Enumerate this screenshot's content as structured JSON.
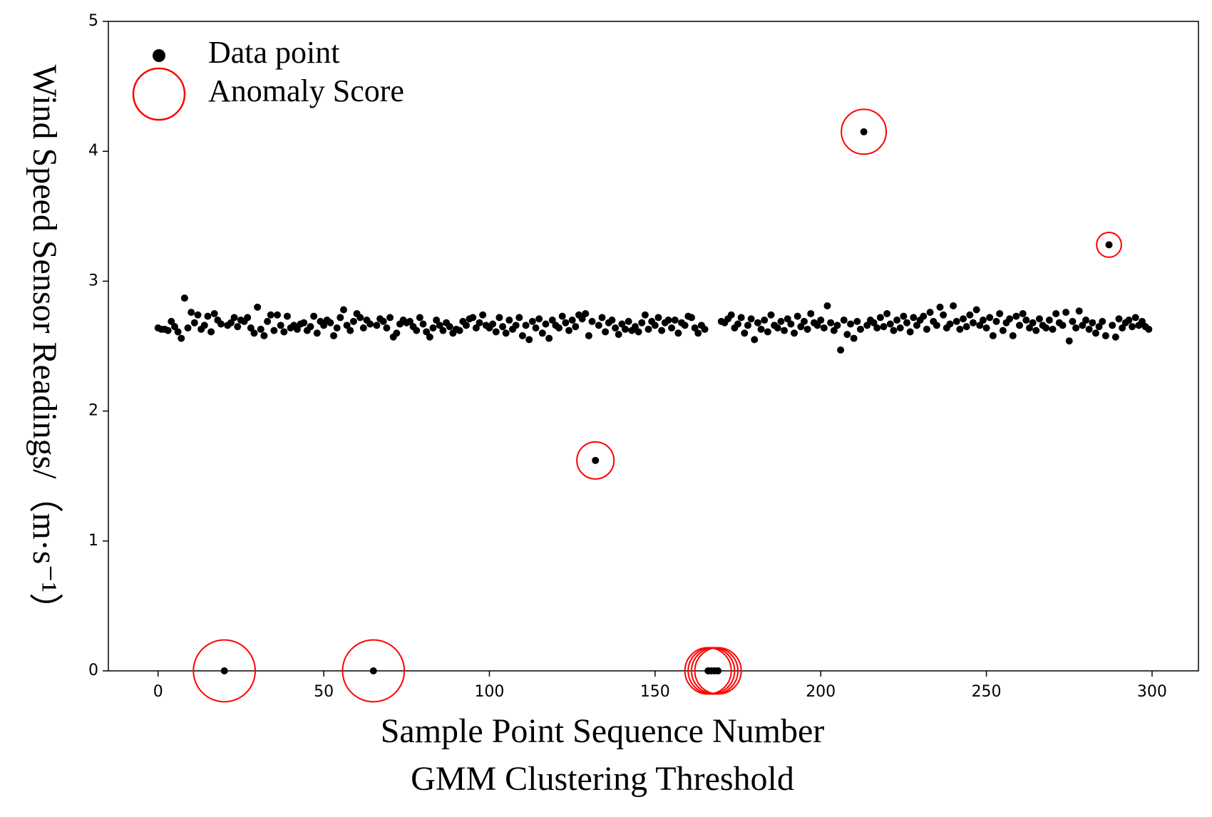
{
  "chart_data": {
    "type": "scatter",
    "xlabel": [
      "Sample Point Sequence Number",
      "GMM Clustering Threshold"
    ],
    "ylabel": "Wind Speed Sensor Readings/（m·s⁻¹）",
    "xlim": [
      -15,
      314
    ],
    "ylim": [
      0,
      5
    ],
    "xticks": [
      0,
      50,
      100,
      150,
      200,
      250,
      300
    ],
    "yticks": [
      0,
      1,
      2,
      3,
      4,
      5
    ],
    "legend": "upper left",
    "series": [
      {
        "name": "Data point",
        "color": "#000000",
        "marker": "dot",
        "x": [
          0,
          1,
          2,
          3,
          4,
          5,
          6,
          7,
          8,
          9,
          10,
          11,
          12,
          13,
          14,
          15,
          16,
          17,
          18,
          19,
          20,
          21,
          22,
          23,
          24,
          25,
          26,
          27,
          28,
          29,
          30,
          31,
          32,
          33,
          34,
          35,
          36,
          37,
          38,
          39,
          40,
          41,
          42,
          43,
          44,
          45,
          46,
          47,
          48,
          49,
          50,
          51,
          52,
          53,
          54,
          55,
          56,
          57,
          58,
          59,
          60,
          61,
          62,
          63,
          64,
          65,
          66,
          67,
          68,
          69,
          70,
          71,
          72,
          73,
          74,
          75,
          76,
          77,
          78,
          79,
          80,
          81,
          82,
          83,
          84,
          85,
          86,
          87,
          88,
          89,
          90,
          91,
          92,
          93,
          94,
          95,
          96,
          97,
          98,
          99,
          100,
          101,
          102,
          103,
          104,
          105,
          106,
          107,
          108,
          109,
          110,
          111,
          112,
          113,
          114,
          115,
          116,
          117,
          118,
          119,
          120,
          121,
          122,
          123,
          124,
          125,
          126,
          127,
          128,
          129,
          130,
          131,
          132,
          133,
          134,
          135,
          136,
          137,
          138,
          139,
          140,
          141,
          142,
          143,
          144,
          145,
          146,
          147,
          148,
          149,
          150,
          151,
          152,
          153,
          154,
          155,
          156,
          157,
          158,
          159,
          160,
          161,
          162,
          163,
          164,
          165,
          166,
          167,
          168,
          169,
          170,
          171,
          172,
          173,
          174,
          175,
          176,
          177,
          178,
          179,
          180,
          181,
          182,
          183,
          184,
          185,
          186,
          187,
          188,
          189,
          190,
          191,
          192,
          193,
          194,
          195,
          196,
          197,
          198,
          199,
          200,
          201,
          202,
          203,
          204,
          205,
          206,
          207,
          208,
          209,
          210,
          211,
          212,
          213,
          214,
          215,
          216,
          217,
          218,
          219,
          220,
          221,
          222,
          223,
          224,
          225,
          226,
          227,
          228,
          229,
          230,
          231,
          232,
          233,
          234,
          235,
          236,
          237,
          238,
          239,
          240,
          241,
          242,
          243,
          244,
          245,
          246,
          247,
          248,
          249,
          250,
          251,
          252,
          253,
          254,
          255,
          256,
          257,
          258,
          259,
          260,
          261,
          262,
          263,
          264,
          265,
          266,
          267,
          268,
          269,
          270,
          271,
          272,
          273,
          274,
          275,
          276,
          277,
          278,
          279,
          280,
          281,
          282,
          283,
          284,
          285,
          286,
          287,
          288,
          289,
          290,
          291,
          292,
          293,
          294,
          295,
          296,
          297,
          298,
          299
        ],
        "values": [
          2.64,
          2.63,
          2.63,
          2.62,
          2.69,
          2.65,
          2.61,
          2.56,
          2.87,
          2.64,
          2.76,
          2.68,
          2.74,
          2.63,
          2.66,
          2.73,
          2.61,
          2.75,
          2.7,
          2.67,
          0,
          2.66,
          2.68,
          2.72,
          2.65,
          2.7,
          2.69,
          2.72,
          2.64,
          2.6,
          2.8,
          2.63,
          2.58,
          2.69,
          2.74,
          2.62,
          2.74,
          2.66,
          2.61,
          2.73,
          2.64,
          2.66,
          2.63,
          2.67,
          2.68,
          2.62,
          2.65,
          2.73,
          2.6,
          2.69,
          2.66,
          2.7,
          2.68,
          2.58,
          2.64,
          2.72,
          2.78,
          2.66,
          2.62,
          2.69,
          2.75,
          2.72,
          2.64,
          2.7,
          2.67,
          0,
          2.66,
          2.71,
          2.69,
          2.64,
          2.72,
          2.57,
          2.6,
          2.67,
          2.7,
          2.68,
          2.69,
          2.65,
          2.62,
          2.72,
          2.67,
          2.61,
          2.57,
          2.64,
          2.7,
          2.66,
          2.62,
          2.68,
          2.65,
          2.6,
          2.63,
          2.62,
          2.69,
          2.66,
          2.71,
          2.72,
          2.64,
          2.68,
          2.74,
          2.66,
          2.64,
          2.67,
          2.61,
          2.72,
          2.65,
          2.6,
          2.7,
          2.63,
          2.66,
          2.72,
          2.58,
          2.66,
          2.55,
          2.69,
          2.64,
          2.71,
          2.6,
          2.67,
          2.56,
          2.7,
          2.66,
          2.64,
          2.73,
          2.68,
          2.62,
          2.7,
          2.65,
          2.74,
          2.71,
          2.75,
          2.58,
          2.69,
          1.62,
          2.66,
          2.72,
          2.61,
          2.68,
          2.7,
          2.64,
          2.59,
          2.67,
          2.63,
          2.69,
          2.62,
          2.65,
          2.61,
          2.68,
          2.74,
          2.63,
          2.69,
          2.66,
          2.72,
          2.62,
          2.68,
          2.7,
          2.64,
          2.7,
          2.6,
          2.68,
          2.66,
          2.73,
          2.72,
          2.64,
          2.6,
          2.66,
          2.63,
          0,
          0,
          0,
          0,
          2.69,
          2.68,
          2.71,
          2.74,
          2.64,
          2.67,
          2.72,
          2.6,
          2.66,
          2.71,
          2.55,
          2.68,
          2.63,
          2.7,
          2.61,
          2.74,
          2.66,
          2.64,
          2.69,
          2.62,
          2.71,
          2.67,
          2.6,
          2.73,
          2.65,
          2.69,
          2.63,
          2.75,
          2.68,
          2.66,
          2.7,
          2.64,
          2.81,
          2.68,
          2.62,
          2.66,
          2.47,
          2.7,
          2.59,
          2.67,
          2.56,
          2.69,
          2.63,
          4.15,
          2.66,
          2.7,
          2.68,
          2.64,
          2.72,
          2.65,
          2.75,
          2.67,
          2.62,
          2.7,
          2.64,
          2.73,
          2.68,
          2.61,
          2.72,
          2.66,
          2.7,
          2.73,
          2.63,
          2.76,
          2.69,
          2.66,
          2.8,
          2.74,
          2.64,
          2.67,
          2.81,
          2.69,
          2.63,
          2.71,
          2.65,
          2.74,
          2.68,
          2.78,
          2.66,
          2.7,
          2.64,
          2.72,
          2.58,
          2.69,
          2.75,
          2.62,
          2.68,
          2.71,
          2.58,
          2.73,
          2.66,
          2.75,
          2.7,
          2.64,
          2.68,
          2.62,
          2.71,
          2.66,
          2.64,
          2.7,
          2.63,
          2.75,
          2.68,
          2.66,
          2.76,
          2.54,
          2.69,
          2.64,
          2.77,
          2.66,
          2.7,
          2.63,
          2.68,
          2.6,
          2.65,
          2.69,
          2.58,
          3.28,
          2.66,
          2.57,
          2.71,
          2.64,
          2.68,
          2.7,
          2.65,
          2.72,
          2.66,
          2.69,
          2.65,
          2.63
        ]
      },
      {
        "name": "Anomaly Score",
        "color": "#ff0000",
        "marker": "ring",
        "x": [
          20,
          65,
          132,
          166,
          167,
          168,
          169,
          213,
          287
        ],
        "values": [
          0,
          0,
          1.62,
          0,
          0,
          0,
          0,
          4.15,
          3.28
        ],
        "sizes": [
          40,
          40,
          24,
          30,
          30,
          30,
          30,
          29,
          16
        ]
      }
    ]
  }
}
